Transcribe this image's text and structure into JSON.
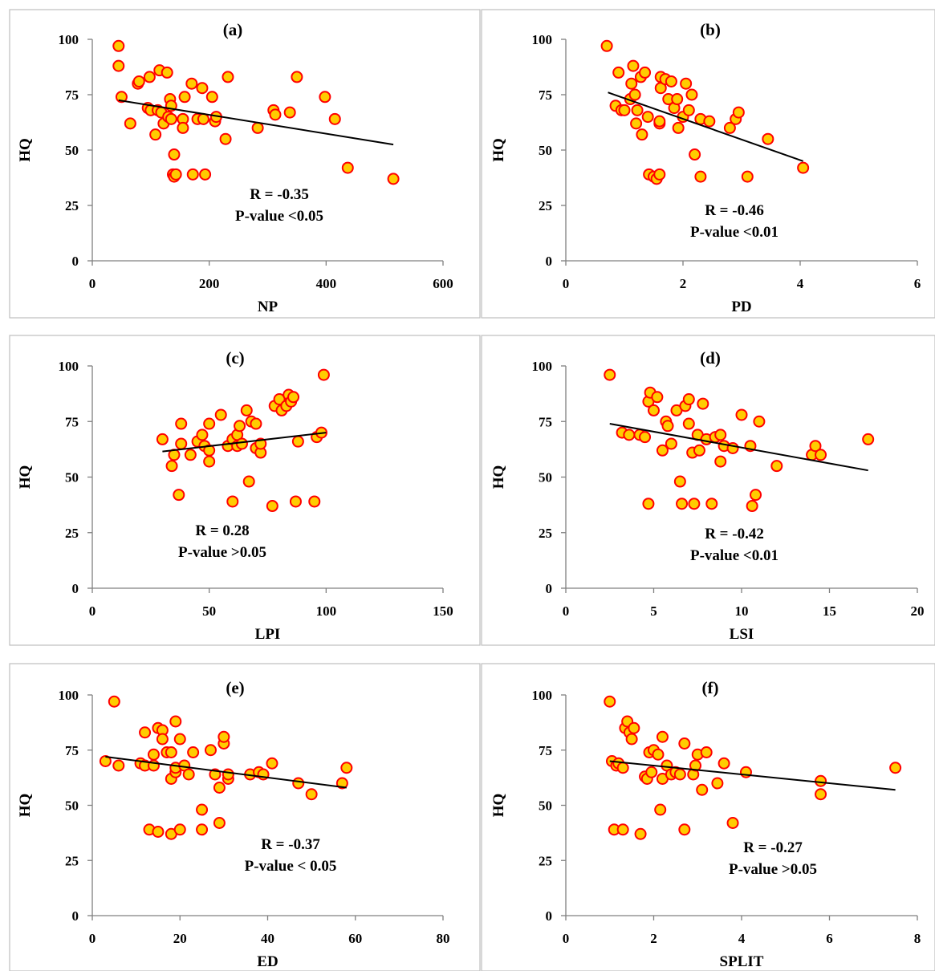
{
  "colors": {
    "marker_fill": "#ffcc00",
    "marker_edge": "#ff0000",
    "trend_line": "#000000",
    "axis": "#808080"
  },
  "chart_data": [
    {
      "type": "scatter",
      "panel": "(a)",
      "xlabel": "NP",
      "ylabel": "HQ",
      "xlim": [
        0,
        600
      ],
      "ylim": [
        0,
        100
      ],
      "x_ticks": [
        "0",
        "200",
        "400",
        "600"
      ],
      "y_ticks": [
        "0",
        "25",
        "50",
        "75",
        "100"
      ],
      "r_text": "R = -0.35",
      "p_text": "P-value <0.05",
      "trend": [
        [
          45,
          72.5
        ],
        [
          515,
          52.5
        ]
      ],
      "points": [
        [
          45,
          97
        ],
        [
          45,
          88
        ],
        [
          50,
          74
        ],
        [
          65,
          62
        ],
        [
          78,
          80
        ],
        [
          80,
          81
        ],
        [
          95,
          69
        ],
        [
          98,
          83
        ],
        [
          100,
          68
        ],
        [
          108,
          57
        ],
        [
          112,
          68
        ],
        [
          115,
          86
        ],
        [
          118,
          67
        ],
        [
          122,
          62
        ],
        [
          128,
          85
        ],
        [
          130,
          65
        ],
        [
          133,
          73
        ],
        [
          135,
          70
        ],
        [
          135,
          64
        ],
        [
          138,
          39
        ],
        [
          140,
          48
        ],
        [
          140,
          38
        ],
        [
          143,
          39
        ],
        [
          155,
          64
        ],
        [
          155,
          60
        ],
        [
          158,
          74
        ],
        [
          170,
          80
        ],
        [
          172,
          39
        ],
        [
          180,
          64
        ],
        [
          188,
          78
        ],
        [
          190,
          64
        ],
        [
          193,
          39
        ],
        [
          205,
          74
        ],
        [
          210,
          63
        ],
        [
          212,
          65
        ],
        [
          228,
          55
        ],
        [
          232,
          83
        ],
        [
          283,
          60
        ],
        [
          310,
          68
        ],
        [
          313,
          66
        ],
        [
          338,
          67
        ],
        [
          350,
          83
        ],
        [
          398,
          74
        ],
        [
          415,
          64
        ],
        [
          437,
          42
        ],
        [
          515,
          37
        ]
      ]
    },
    {
      "type": "scatter",
      "panel": "(b)",
      "xlabel": "PD",
      "ylabel": "HQ",
      "xlim": [
        0,
        6
      ],
      "ylim": [
        0,
        100
      ],
      "x_ticks": [
        "0",
        "2",
        "4",
        "6"
      ],
      "y_ticks": [
        "0",
        "25",
        "50",
        "75",
        "100"
      ],
      "r_text": "R = -0.46",
      "p_text": "P-value <0.01",
      "trend": [
        [
          0.72,
          76
        ],
        [
          4.05,
          45
        ]
      ],
      "points": [
        [
          0.7,
          97
        ],
        [
          0.85,
          70
        ],
        [
          0.9,
          85
        ],
        [
          0.95,
          68
        ],
        [
          1.0,
          68
        ],
        [
          1.1,
          73
        ],
        [
          1.12,
          80
        ],
        [
          1.15,
          88
        ],
        [
          1.18,
          75
        ],
        [
          1.2,
          62
        ],
        [
          1.22,
          68
        ],
        [
          1.28,
          83
        ],
        [
          1.3,
          57
        ],
        [
          1.35,
          85
        ],
        [
          1.4,
          65
        ],
        [
          1.42,
          39
        ],
        [
          1.5,
          38
        ],
        [
          1.55,
          37
        ],
        [
          1.6,
          39
        ],
        [
          1.6,
          62
        ],
        [
          1.6,
          63
        ],
        [
          1.62,
          78
        ],
        [
          1.62,
          83
        ],
        [
          1.7,
          82
        ],
        [
          1.75,
          73
        ],
        [
          1.8,
          81
        ],
        [
          1.85,
          69
        ],
        [
          1.9,
          73
        ],
        [
          1.92,
          60
        ],
        [
          2.0,
          65
        ],
        [
          2.05,
          80
        ],
        [
          2.1,
          68
        ],
        [
          2.15,
          75
        ],
        [
          2.2,
          48
        ],
        [
          2.3,
          64
        ],
        [
          2.3,
          38
        ],
        [
          2.45,
          63
        ],
        [
          2.8,
          60
        ],
        [
          2.9,
          64
        ],
        [
          2.95,
          67
        ],
        [
          3.1,
          38
        ],
        [
          3.45,
          55
        ],
        [
          4.05,
          42
        ]
      ]
    },
    {
      "type": "scatter",
      "panel": "(c)",
      "xlabel": "LPI",
      "ylabel": "HQ",
      "xlim": [
        0,
        150
      ],
      "ylim": [
        0,
        100
      ],
      "x_ticks": [
        "0",
        "50",
        "100",
        "150"
      ],
      "y_ticks": [
        "0",
        "25",
        "50",
        "75",
        "100"
      ],
      "r_text": "R = 0.28",
      "p_text": "P-value >0.05",
      "trend": [
        [
          30,
          61.5
        ],
        [
          100,
          70
        ]
      ],
      "points": [
        [
          30,
          67
        ],
        [
          34,
          55
        ],
        [
          35,
          60
        ],
        [
          37,
          42
        ],
        [
          38,
          74
        ],
        [
          38,
          65
        ],
        [
          42,
          60
        ],
        [
          45,
          66
        ],
        [
          47,
          69
        ],
        [
          48,
          64
        ],
        [
          50,
          74
        ],
        [
          50,
          62
        ],
        [
          50,
          57
        ],
        [
          55,
          78
        ],
        [
          58,
          64
        ],
        [
          60,
          39
        ],
        [
          60,
          67
        ],
        [
          62,
          64
        ],
        [
          62,
          69
        ],
        [
          63,
          73
        ],
        [
          64,
          65
        ],
        [
          66,
          80
        ],
        [
          67,
          48
        ],
        [
          68,
          75
        ],
        [
          70,
          74
        ],
        [
          70,
          63
        ],
        [
          72,
          61
        ],
        [
          72,
          65
        ],
        [
          77,
          37
        ],
        [
          78,
          82
        ],
        [
          80,
          85
        ],
        [
          81,
          80
        ],
        [
          83,
          82
        ],
        [
          84,
          87
        ],
        [
          85,
          84
        ],
        [
          86,
          86
        ],
        [
          87,
          39
        ],
        [
          88,
          66
        ],
        [
          95,
          39
        ],
        [
          96,
          68
        ],
        [
          98,
          70
        ],
        [
          99,
          96
        ]
      ]
    },
    {
      "type": "scatter",
      "panel": "(d)",
      "xlabel": "LSI",
      "ylabel": "HQ",
      "xlim": [
        0,
        20
      ],
      "ylim": [
        0,
        100
      ],
      "x_ticks": [
        "0",
        "5",
        "10",
        "15",
        "20"
      ],
      "y_ticks": [
        "0",
        "25",
        "50",
        "75",
        "100"
      ],
      "r_text": "R = -0.42",
      "p_text": "P-value <0.01",
      "trend": [
        [
          2.5,
          74
        ],
        [
          17.2,
          53
        ]
      ],
      "points": [
        [
          2.5,
          96
        ],
        [
          3.2,
          70
        ],
        [
          3.6,
          69
        ],
        [
          4.2,
          69
        ],
        [
          4.5,
          68
        ],
        [
          4.7,
          38
        ],
        [
          4.7,
          84
        ],
        [
          4.8,
          88
        ],
        [
          5.0,
          80
        ],
        [
          5.2,
          86
        ],
        [
          5.5,
          62
        ],
        [
          5.7,
          75
        ],
        [
          5.8,
          73
        ],
        [
          6.0,
          65
        ],
        [
          6.3,
          80
        ],
        [
          6.5,
          48
        ],
        [
          6.6,
          38
        ],
        [
          6.8,
          82
        ],
        [
          7.0,
          85
        ],
        [
          7.0,
          74
        ],
        [
          7.2,
          61
        ],
        [
          7.3,
          38
        ],
        [
          7.5,
          69
        ],
        [
          7.6,
          62
        ],
        [
          7.8,
          83
        ],
        [
          8.0,
          67
        ],
        [
          8.3,
          38
        ],
        [
          8.5,
          68
        ],
        [
          8.8,
          69
        ],
        [
          8.8,
          57
        ],
        [
          9.0,
          64
        ],
        [
          9.5,
          63
        ],
        [
          10.0,
          78
        ],
        [
          10.5,
          64
        ],
        [
          10.6,
          37
        ],
        [
          10.8,
          42
        ],
        [
          11.0,
          75
        ],
        [
          12.0,
          55
        ],
        [
          14.0,
          60
        ],
        [
          14.2,
          64
        ],
        [
          14.5,
          60
        ],
        [
          17.2,
          67
        ]
      ]
    },
    {
      "type": "scatter",
      "panel": "(e)",
      "xlabel": "ED",
      "ylabel": "HQ",
      "xlim": [
        0,
        80
      ],
      "ylim": [
        0,
        100
      ],
      "x_ticks": [
        "0",
        "20",
        "40",
        "60",
        "80"
      ],
      "y_ticks": [
        "0",
        "25",
        "50",
        "75",
        "100"
      ],
      "r_text": "R = -0.37",
      "p_text": "P-value < 0.05",
      "trend": [
        [
          3,
          72
        ],
        [
          58,
          58
        ]
      ],
      "points": [
        [
          3,
          70
        ],
        [
          5,
          97
        ],
        [
          6,
          68
        ],
        [
          11,
          69
        ],
        [
          12,
          68
        ],
        [
          12,
          83
        ],
        [
          13,
          39
        ],
        [
          14,
          68
        ],
        [
          14,
          73
        ],
        [
          15,
          85
        ],
        [
          15,
          38
        ],
        [
          16,
          84
        ],
        [
          16,
          80
        ],
        [
          17,
          74
        ],
        [
          18,
          37
        ],
        [
          18,
          62
        ],
        [
          18,
          74
        ],
        [
          19,
          65
        ],
        [
          19,
          67
        ],
        [
          19,
          88
        ],
        [
          20,
          39
        ],
        [
          20,
          80
        ],
        [
          21,
          68
        ],
        [
          22,
          64
        ],
        [
          23,
          74
        ],
        [
          25,
          39
        ],
        [
          25,
          48
        ],
        [
          27,
          75
        ],
        [
          28,
          64
        ],
        [
          29,
          58
        ],
        [
          29,
          42
        ],
        [
          30,
          78
        ],
        [
          30,
          81
        ],
        [
          31,
          62
        ],
        [
          31,
          64
        ],
        [
          36,
          64
        ],
        [
          38,
          65
        ],
        [
          39,
          64
        ],
        [
          41,
          69
        ],
        [
          47,
          60
        ],
        [
          50,
          55
        ],
        [
          57,
          60
        ],
        [
          58,
          67
        ]
      ]
    },
    {
      "type": "scatter",
      "panel": "(f)",
      "xlabel": "SPLIT",
      "ylabel": "HQ",
      "xlim": [
        0,
        8
      ],
      "ylim": [
        0,
        100
      ],
      "x_ticks": [
        "0",
        "2",
        "4",
        "6",
        "8"
      ],
      "y_ticks": [
        "0",
        "25",
        "50",
        "75",
        "100"
      ],
      "r_text": "R = -0.27",
      "p_text": "P-value >0.05",
      "trend": [
        [
          1.0,
          70
        ],
        [
          7.5,
          57
        ]
      ],
      "points": [
        [
          1.0,
          97
        ],
        [
          1.05,
          70
        ],
        [
          1.1,
          39
        ],
        [
          1.15,
          68
        ],
        [
          1.2,
          69
        ],
        [
          1.3,
          67
        ],
        [
          1.3,
          39
        ],
        [
          1.35,
          85
        ],
        [
          1.4,
          88
        ],
        [
          1.45,
          83
        ],
        [
          1.5,
          80
        ],
        [
          1.55,
          85
        ],
        [
          1.7,
          37
        ],
        [
          1.8,
          63
        ],
        [
          1.85,
          62
        ],
        [
          1.9,
          74
        ],
        [
          1.95,
          65
        ],
        [
          2.0,
          75
        ],
        [
          2.1,
          73
        ],
        [
          2.15,
          48
        ],
        [
          2.2,
          62
        ],
        [
          2.2,
          81
        ],
        [
          2.3,
          68
        ],
        [
          2.4,
          64
        ],
        [
          2.5,
          65
        ],
        [
          2.6,
          64
        ],
        [
          2.7,
          78
        ],
        [
          2.7,
          39
        ],
        [
          2.9,
          64
        ],
        [
          2.95,
          68
        ],
        [
          3.0,
          73
        ],
        [
          3.1,
          57
        ],
        [
          3.2,
          74
        ],
        [
          3.45,
          60
        ],
        [
          3.6,
          69
        ],
        [
          3.8,
          42
        ],
        [
          4.1,
          65
        ],
        [
          5.8,
          61
        ],
        [
          5.8,
          55
        ],
        [
          7.5,
          67
        ]
      ]
    }
  ]
}
